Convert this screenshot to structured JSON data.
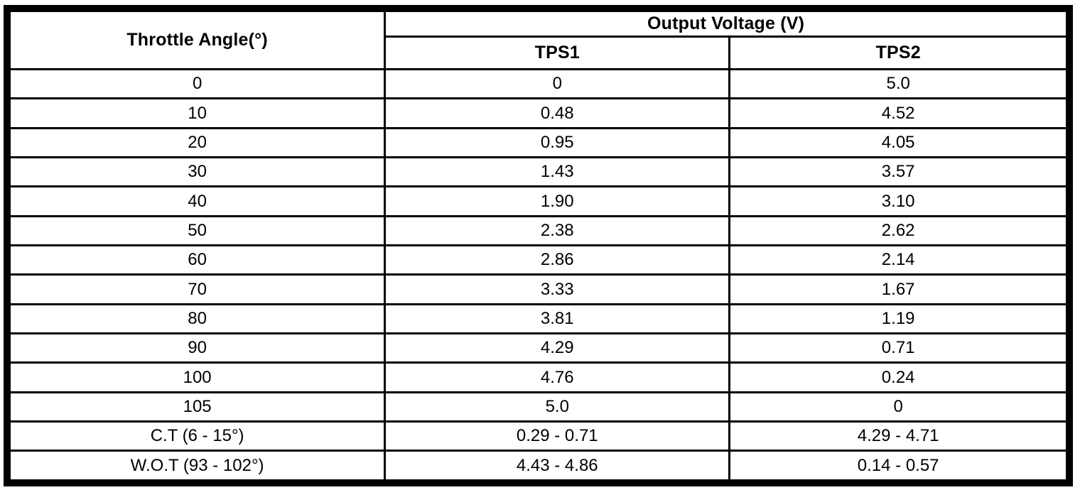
{
  "page": {
    "background": "#ffffff"
  },
  "colors": {
    "border": "#000000",
    "text": "#000000",
    "background": "#ffffff"
  },
  "table": {
    "header": {
      "throttle_angle": "Throttle Angle(°)",
      "output_voltage_group": "Output Voltage (V)",
      "tps1": "TPS1",
      "tps2": "TPS2"
    },
    "rows": [
      [
        "0",
        "0",
        "5.0"
      ],
      [
        "10",
        "0.48",
        "4.52"
      ],
      [
        "20",
        "0.95",
        "4.05"
      ],
      [
        "30",
        "1.43",
        "3.57"
      ],
      [
        "40",
        "1.90",
        "3.10"
      ],
      [
        "50",
        "2.38",
        "2.62"
      ],
      [
        "60",
        "2.86",
        "2.14"
      ],
      [
        "70",
        "3.33",
        "1.67"
      ],
      [
        "80",
        "3.81",
        "1.19"
      ],
      [
        "90",
        "4.29",
        "0.71"
      ],
      [
        "100",
        "4.76",
        "0.24"
      ],
      [
        "105",
        "5.0",
        "0"
      ],
      [
        "C.T (6 - 15°)",
        "0.29 - 0.71",
        "4.29 - 4.71"
      ],
      [
        "W.O.T (93 - 102°)",
        "4.43 - 4.86",
        "0.14 - 0.57"
      ]
    ]
  },
  "chart_data": {
    "type": "table",
    "title": "Output Voltage (V)",
    "columns": [
      "Throttle Angle(°)",
      "TPS1 Output Voltage (V)",
      "TPS2 Output Voltage (V)"
    ],
    "rows": [
      [
        "0",
        "0",
        "5.0"
      ],
      [
        "10",
        "0.48",
        "4.52"
      ],
      [
        "20",
        "0.95",
        "4.05"
      ],
      [
        "30",
        "1.43",
        "3.57"
      ],
      [
        "40",
        "1.90",
        "3.10"
      ],
      [
        "50",
        "2.38",
        "2.62"
      ],
      [
        "60",
        "2.86",
        "2.14"
      ],
      [
        "70",
        "3.33",
        "1.67"
      ],
      [
        "80",
        "3.81",
        "1.19"
      ],
      [
        "90",
        "4.29",
        "0.71"
      ],
      [
        "100",
        "4.76",
        "0.24"
      ],
      [
        "105",
        "5.0",
        "0"
      ],
      [
        "C.T (6 - 15°)",
        "0.29 - 0.71",
        "4.29 - 4.71"
      ],
      [
        "W.O.T (93 - 102°)",
        "4.43 - 4.86",
        "0.14 - 0.57"
      ]
    ]
  }
}
